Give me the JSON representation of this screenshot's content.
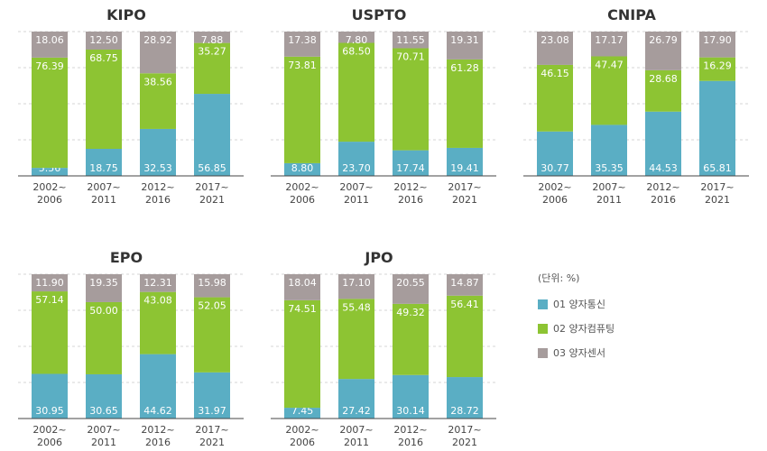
{
  "colors": {
    "series": [
      "#5aaec4",
      "#8dc433",
      "#a69c9c"
    ],
    "grid": "#d6d6d6",
    "axis": "#444444",
    "value_text": "#ffffff",
    "title_text": "#333333"
  },
  "legend": {
    "unit": "(단위: %)",
    "items": [
      "01 양자통신",
      "02 양자컴퓨팅",
      "03 양자센서"
    ]
  },
  "chart_data": [
    {
      "type": "bar",
      "stacked": true,
      "title": "KIPO",
      "categories": [
        "2002~\n2006",
        "2007~\n2011",
        "2012~\n2016",
        "2017~\n2021"
      ],
      "ylim": [
        0,
        100
      ],
      "series": [
        {
          "name": "01 양자통신",
          "values": [
            5.56,
            18.75,
            32.53,
            56.85
          ]
        },
        {
          "name": "02 양자컴퓨팅",
          "values": [
            76.39,
            68.75,
            38.56,
            35.27
          ]
        },
        {
          "name": "03 양자센서",
          "values": [
            18.06,
            12.5,
            28.92,
            7.88
          ]
        }
      ]
    },
    {
      "type": "bar",
      "stacked": true,
      "title": "USPTO",
      "categories": [
        "2002~\n2006",
        "2007~\n2011",
        "2012~\n2016",
        "2017~\n2021"
      ],
      "ylim": [
        0,
        100
      ],
      "series": [
        {
          "name": "01 양자통신",
          "values": [
            8.8,
            23.7,
            17.74,
            19.41
          ]
        },
        {
          "name": "02 양자컴퓨팅",
          "values": [
            73.81,
            68.5,
            70.71,
            61.28
          ]
        },
        {
          "name": "03 양자센서",
          "values": [
            17.38,
            7.8,
            11.55,
            19.31
          ]
        }
      ]
    },
    {
      "type": "bar",
      "stacked": true,
      "title": "CNIPA",
      "categories": [
        "2002~\n2006",
        "2007~\n2011",
        "2012~\n2016",
        "2017~\n2021"
      ],
      "ylim": [
        0,
        100
      ],
      "series": [
        {
          "name": "01 양자통신",
          "values": [
            30.77,
            35.35,
            44.53,
            65.81
          ]
        },
        {
          "name": "02 양자컴퓨팅",
          "values": [
            46.15,
            47.47,
            28.68,
            16.29
          ]
        },
        {
          "name": "03 양자센서",
          "values": [
            23.08,
            17.17,
            26.79,
            17.9
          ]
        }
      ]
    },
    {
      "type": "bar",
      "stacked": true,
      "title": "EPO",
      "categories": [
        "2002~\n2006",
        "2007~\n2011",
        "2012~\n2016",
        "2017~\n2021"
      ],
      "ylim": [
        0,
        100
      ],
      "series": [
        {
          "name": "01 양자통신",
          "values": [
            30.95,
            30.65,
            44.62,
            31.97
          ]
        },
        {
          "name": "02 양자컴퓨팅",
          "values": [
            57.14,
            50.0,
            43.08,
            52.05
          ]
        },
        {
          "name": "03 양자센서",
          "values": [
            11.9,
            19.35,
            12.31,
            15.98
          ]
        }
      ]
    },
    {
      "type": "bar",
      "stacked": true,
      "title": "JPO",
      "categories": [
        "2002~\n2006",
        "2007~\n2011",
        "2012~\n2016",
        "2017~\n2021"
      ],
      "ylim": [
        0,
        100
      ],
      "series": [
        {
          "name": "01 양자통신",
          "values": [
            7.45,
            27.42,
            30.14,
            28.72
          ]
        },
        {
          "name": "02 양자컴퓨팅",
          "values": [
            74.51,
            55.48,
            49.32,
            56.41
          ]
        },
        {
          "name": "03 양자센서",
          "values": [
            18.04,
            17.1,
            20.55,
            14.87
          ]
        }
      ]
    }
  ]
}
